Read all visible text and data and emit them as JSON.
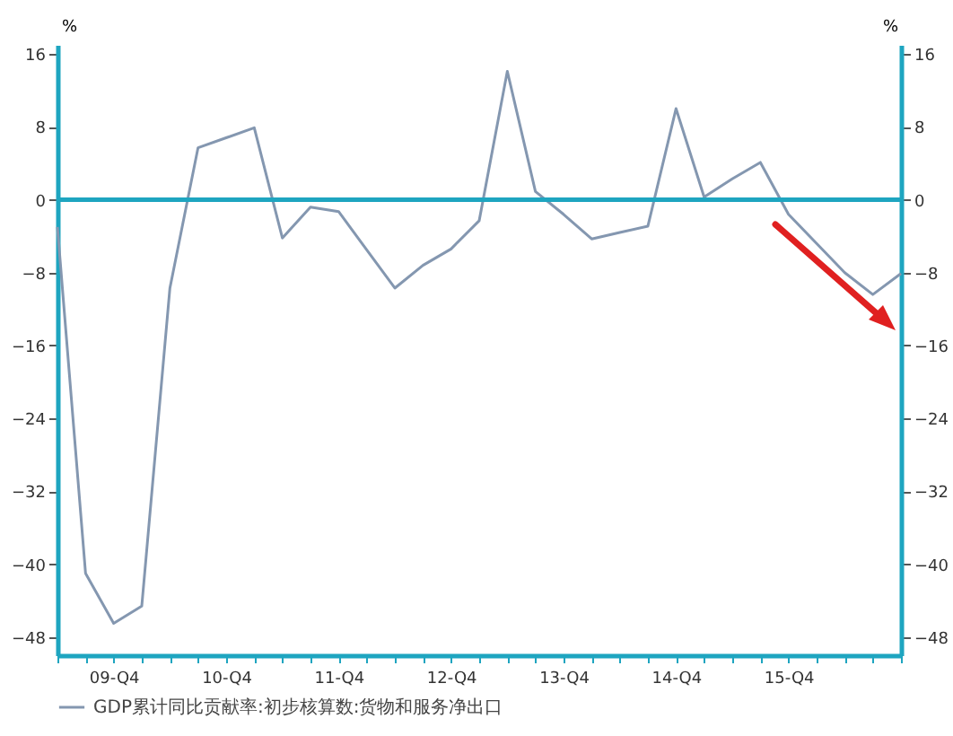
{
  "chart_data": {
    "type": "line",
    "ylabel": "%",
    "y2label": "%",
    "categories": [
      null,
      null,
      "09-Q4",
      null,
      null,
      null,
      "10-Q4",
      null,
      null,
      null,
      "11-Q4",
      null,
      null,
      null,
      "12-Q4",
      null,
      null,
      null,
      "13-Q4",
      null,
      null,
      null,
      "14-Q4",
      null,
      null,
      null,
      "15-Q4",
      null,
      null,
      null,
      null
    ],
    "series": [
      {
        "name": "GDP累计同比贡献率:初步核算数:货物和服务净出口",
        "color": "#8497b0",
        "values": [
          -3,
          -41,
          -46.5,
          -44.6,
          -9.7,
          5.7,
          6.8,
          7.9,
          -4.2,
          -0.8,
          -1.3,
          -5.5,
          -9.7,
          -7.2,
          -5.4,
          -2.3,
          14.1,
          0.9,
          -1.6,
          -4.3,
          -3.6,
          -2.9,
          10,
          0.3,
          2.3,
          4.1,
          -1.6,
          -4.8,
          -8,
          -10.4,
          -8.1
        ]
      }
    ],
    "ylim": [
      -50,
      17
    ],
    "yticks": [
      -48,
      -40,
      -32,
      -24,
      -16,
      -8,
      0,
      8,
      16
    ],
    "y2lim": [
      -50,
      17
    ],
    "y2ticks": [
      -48,
      -40,
      -32,
      -24,
      -16,
      -8,
      0,
      8,
      16
    ],
    "ref_lines": [
      {
        "axis": "y",
        "value": 0,
        "color": "#1ea5c0"
      }
    ],
    "grid": false,
    "legend": "bottom"
  }
}
